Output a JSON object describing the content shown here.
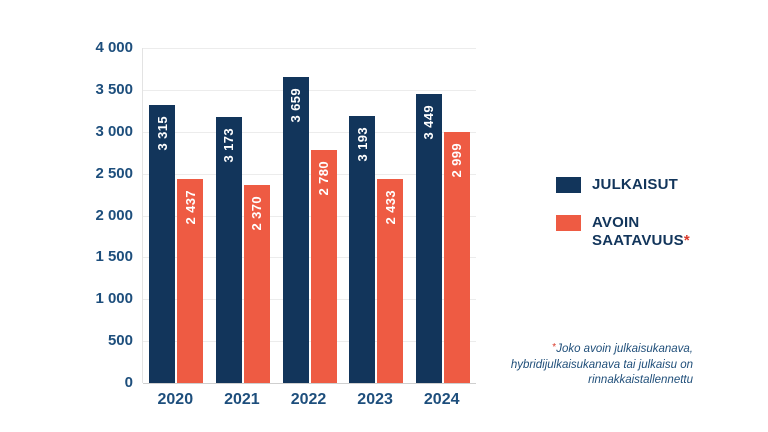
{
  "chart_data": {
    "type": "bar",
    "title": "",
    "categories": [
      "2020",
      "2021",
      "2022",
      "2023",
      "2024"
    ],
    "series": [
      {
        "name": "JULKAISUT",
        "color": "#12355b",
        "values": [
          3315,
          3173,
          3659,
          3193,
          3449
        ],
        "labels": [
          "3 315",
          "3 173",
          "3 659",
          "3 193",
          "3 449"
        ]
      },
      {
        "name": "AVOIN SAATAVUUS*",
        "color": "#ee5b43",
        "values": [
          2437,
          2370,
          2780,
          2433,
          2999
        ],
        "labels": [
          "2 437",
          "2 370",
          "2 780",
          "2 433",
          "2 999"
        ]
      }
    ],
    "ylim": [
      0,
      4000
    ],
    "ytick_step": 500,
    "ytick_labels": [
      "0",
      "500",
      "1 000",
      "1 500",
      "2 000",
      "2 500",
      "3 000",
      "3 500",
      "4 000"
    ],
    "grid": true,
    "legend_position": "right",
    "bar_value_labels_inside": true
  },
  "legend": {
    "item1": {
      "label": "JULKAISUT"
    },
    "item2": {
      "line1": "AVOIN",
      "line2": "SAATAVUUS",
      "asterisk": "*"
    }
  },
  "footnote": {
    "asterisk": "*",
    "line1": "Joko avoin julkaisukanava,",
    "line2": "hybridijulkaisukanava tai julkaisu on",
    "line3": "rinnakkaistallennettu"
  },
  "colors": {
    "navy": "#12355b",
    "orange": "#ee5b43",
    "axis_text": "#1d4e7c",
    "gridline": "#ececec",
    "footnote_text": "#1f4e79",
    "asterisk_red": "#d93a2b",
    "bar_value_text": "#ffffff"
  }
}
